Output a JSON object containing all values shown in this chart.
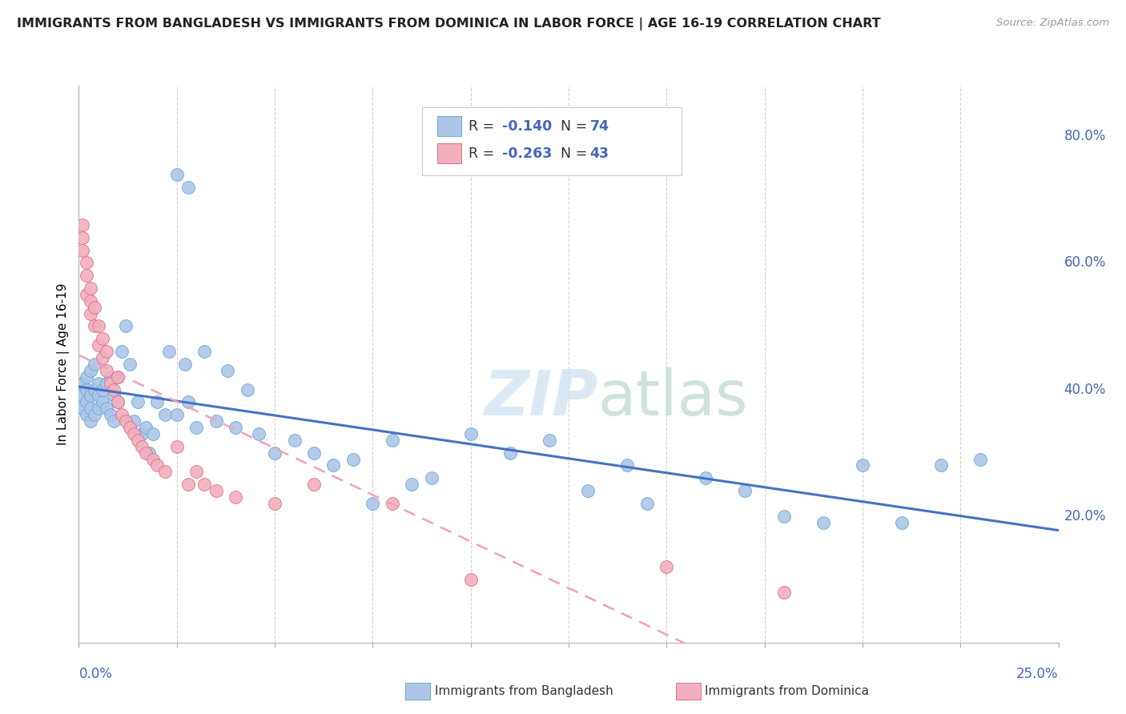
{
  "title": "IMMIGRANTS FROM BANGLADESH VS IMMIGRANTS FROM DOMINICA IN LABOR FORCE | AGE 16-19 CORRELATION CHART",
  "source": "Source: ZipAtlas.com",
  "ylabel": "In Labor Force | Age 16-19",
  "color_blue": "#adc6e8",
  "color_blue_edge": "#6aaad4",
  "color_pink": "#f2b0be",
  "color_pink_edge": "#e07090",
  "color_blue_line": "#4472c4",
  "color_pink_line": "#f4a0b8",
  "watermark_color": "#cce0f0",
  "background_color": "#ffffff",
  "grid_color": "#cccccc",
  "tick_color": "#4466bb",
  "xlim": [
    0.0,
    0.25
  ],
  "ylim": [
    0.0,
    0.88
  ],
  "blue_x": [
    0.001,
    0.001,
    0.001,
    0.002,
    0.002,
    0.002,
    0.002,
    0.003,
    0.003,
    0.003,
    0.003,
    0.004,
    0.004,
    0.004,
    0.005,
    0.005,
    0.005,
    0.006,
    0.006,
    0.007,
    0.007,
    0.008,
    0.008,
    0.009,
    0.009,
    0.01,
    0.01,
    0.011,
    0.012,
    0.013,
    0.014,
    0.015,
    0.016,
    0.017,
    0.018,
    0.019,
    0.02,
    0.022,
    0.023,
    0.025,
    0.027,
    0.028,
    0.03,
    0.032,
    0.035,
    0.038,
    0.04,
    0.043,
    0.046,
    0.05,
    0.055,
    0.06,
    0.065,
    0.07,
    0.075,
    0.08,
    0.085,
    0.09,
    0.1,
    0.11,
    0.12,
    0.13,
    0.14,
    0.145,
    0.16,
    0.17,
    0.18,
    0.19,
    0.2,
    0.21,
    0.22,
    0.23,
    0.025,
    0.028
  ],
  "blue_y": [
    0.37,
    0.39,
    0.41,
    0.36,
    0.38,
    0.4,
    0.42,
    0.35,
    0.37,
    0.39,
    0.43,
    0.36,
    0.4,
    0.44,
    0.37,
    0.39,
    0.41,
    0.38,
    0.4,
    0.37,
    0.41,
    0.36,
    0.42,
    0.35,
    0.39,
    0.38,
    0.42,
    0.46,
    0.5,
    0.44,
    0.35,
    0.38,
    0.33,
    0.34,
    0.3,
    0.33,
    0.38,
    0.36,
    0.46,
    0.36,
    0.44,
    0.38,
    0.34,
    0.46,
    0.35,
    0.43,
    0.34,
    0.4,
    0.33,
    0.3,
    0.32,
    0.3,
    0.28,
    0.29,
    0.22,
    0.32,
    0.25,
    0.26,
    0.33,
    0.3,
    0.32,
    0.24,
    0.28,
    0.22,
    0.26,
    0.24,
    0.2,
    0.19,
    0.28,
    0.19,
    0.28,
    0.29,
    0.74,
    0.72
  ],
  "pink_x": [
    0.001,
    0.001,
    0.001,
    0.002,
    0.002,
    0.002,
    0.003,
    0.003,
    0.003,
    0.004,
    0.004,
    0.005,
    0.005,
    0.006,
    0.006,
    0.007,
    0.007,
    0.008,
    0.009,
    0.01,
    0.01,
    0.011,
    0.012,
    0.013,
    0.014,
    0.015,
    0.016,
    0.017,
    0.019,
    0.02,
    0.022,
    0.025,
    0.028,
    0.03,
    0.032,
    0.035,
    0.04,
    0.05,
    0.06,
    0.08,
    0.1,
    0.15,
    0.18
  ],
  "pink_y": [
    0.62,
    0.64,
    0.66,
    0.55,
    0.58,
    0.6,
    0.52,
    0.54,
    0.56,
    0.5,
    0.53,
    0.47,
    0.5,
    0.45,
    0.48,
    0.43,
    0.46,
    0.41,
    0.4,
    0.38,
    0.42,
    0.36,
    0.35,
    0.34,
    0.33,
    0.32,
    0.31,
    0.3,
    0.29,
    0.28,
    0.27,
    0.31,
    0.25,
    0.27,
    0.25,
    0.24,
    0.23,
    0.22,
    0.25,
    0.22,
    0.1,
    0.12,
    0.08
  ]
}
